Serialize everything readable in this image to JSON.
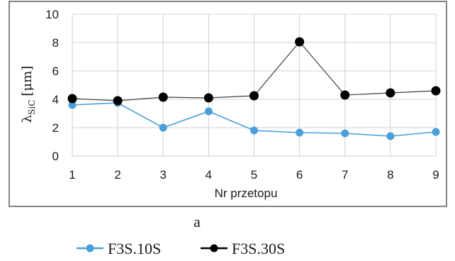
{
  "chart_data": {
    "type": "line",
    "xlabel": "Nr przetopu",
    "ylabel": {
      "main": "λ",
      "sub": "SiC",
      "unit": "[μm]"
    },
    "x": [
      1,
      2,
      3,
      4,
      5,
      6,
      7,
      8,
      9
    ],
    "ylim": [
      0,
      10
    ],
    "yticks": [
      0,
      2,
      4,
      6,
      8,
      10
    ],
    "grid": true,
    "legend_position": "bottom",
    "series": [
      {
        "name": "F3S.10S",
        "color": "#4a9fd8",
        "values": [
          3.6,
          3.75,
          2.0,
          3.15,
          1.8,
          1.65,
          1.6,
          1.4,
          1.7
        ]
      },
      {
        "name": "F3S.30S",
        "color": "#000000",
        "line_color": "#404040",
        "values": [
          4.05,
          3.9,
          4.15,
          4.1,
          4.25,
          8.05,
          4.3,
          4.45,
          4.6
        ]
      }
    ]
  },
  "caption": "a"
}
